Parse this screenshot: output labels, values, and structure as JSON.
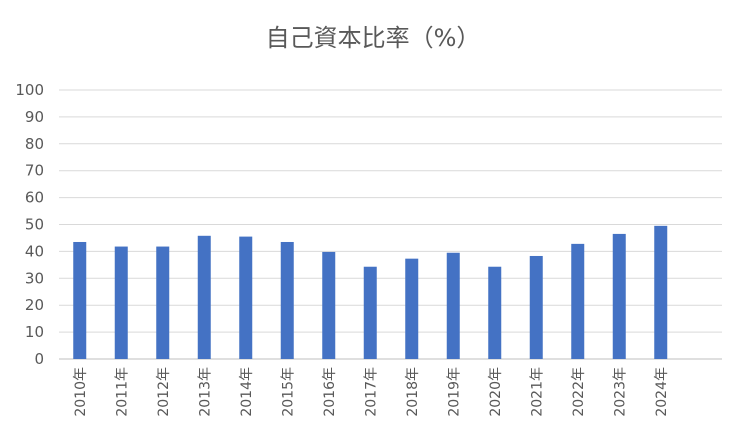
{
  "chart_data": {
    "type": "bar",
    "title": "自己資本比率（%）",
    "xlabel": "",
    "ylabel": "",
    "ylim": [
      0,
      100
    ],
    "yticks": [
      0,
      10,
      20,
      30,
      40,
      50,
      60,
      70,
      80,
      90,
      100
    ],
    "grid": true,
    "legend": "none",
    "categories": [
      "2010年",
      "2011年",
      "2012年",
      "2013年",
      "2014年",
      "2015年",
      "2016年",
      "2017年",
      "2018年",
      "2019年",
      "2020年",
      "2021年",
      "2022年",
      "2023年",
      "2024年"
    ],
    "values": [
      43.5,
      41.8,
      41.8,
      45.8,
      45.5,
      43.5,
      39.8,
      34.3,
      37.3,
      39.5,
      34.3,
      38.3,
      42.8,
      46.5,
      49.5
    ],
    "bar_color": "#4472c4"
  }
}
